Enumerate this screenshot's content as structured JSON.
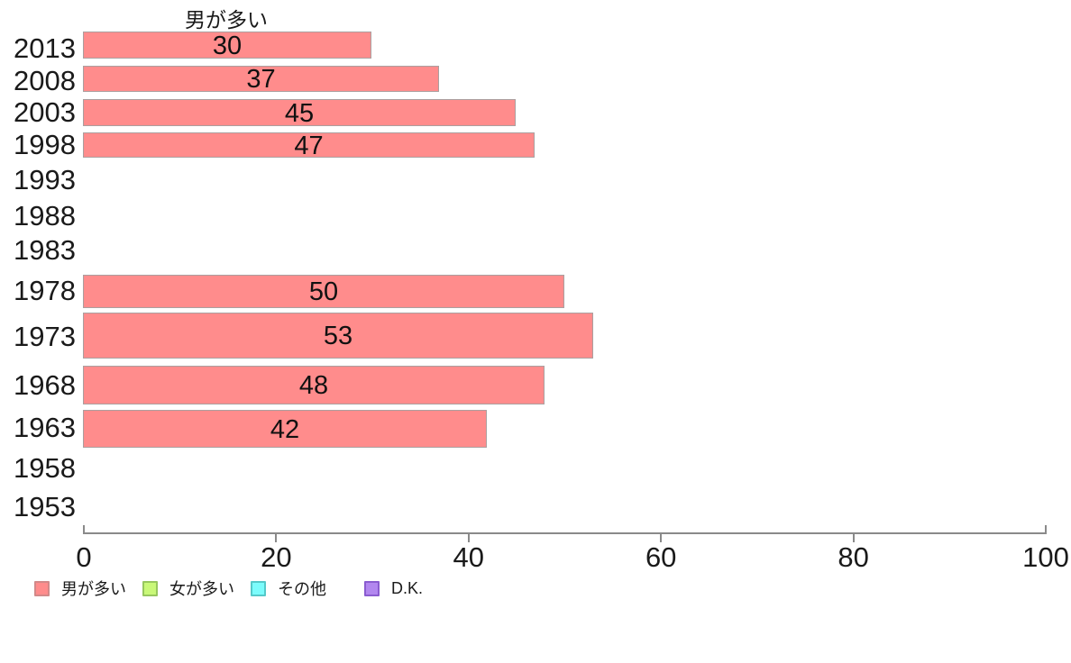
{
  "chart_data": {
    "type": "bar",
    "orientation": "horizontal",
    "title": "男が多い",
    "categories": [
      "2013",
      "2008",
      "2003",
      "1998",
      "1993",
      "1988",
      "1983",
      "1978",
      "1973",
      "1968",
      "1963",
      "1958",
      "1953"
    ],
    "values": [
      30,
      37,
      45,
      47,
      null,
      null,
      null,
      50,
      53,
      48,
      42,
      null,
      null
    ],
    "xlabel": "",
    "ylabel": "",
    "xlim": [
      0,
      100
    ],
    "xticks": [
      0,
      20,
      40,
      60,
      80,
      100
    ],
    "grid": false,
    "bar_color": "#FF8C8C",
    "bar_border_color": "#ab9f9f",
    "legend": {
      "position": "bottom-left",
      "entries": [
        {
          "label": "男が多い",
          "color": "#FF8C8C",
          "border": "#d28989"
        },
        {
          "label": "女が多い",
          "color": "#C9F878",
          "border": "#97c75e"
        },
        {
          "label": "その他",
          "color": "#7CFCFC",
          "border": "#55c9c9"
        },
        {
          "label": "D.K.",
          "color": "#B287EF",
          "border": "#8a5cd0"
        }
      ]
    }
  }
}
